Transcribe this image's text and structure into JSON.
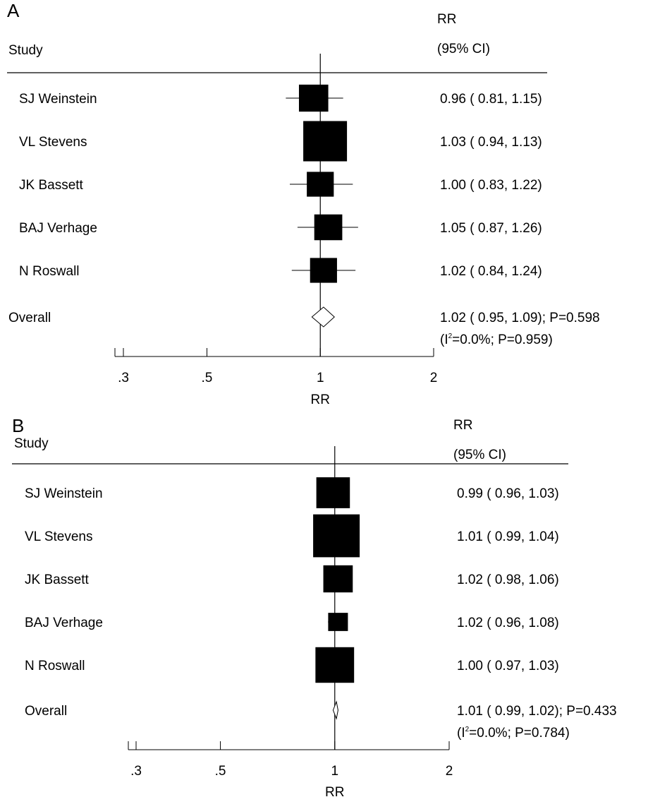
{
  "chart_data": [
    {
      "type": "forest",
      "panel_label": "A",
      "study_header": "Study",
      "rr_header": "RR",
      "ci_header": "(95% CI)",
      "xlabel": "RR",
      "xscale": "log",
      "xticks": [
        {
          "value": 0.3,
          "label": ".3"
        },
        {
          "value": 0.5,
          "label": ".5"
        },
        {
          "value": 1,
          "label": "1"
        },
        {
          "value": 2,
          "label": "2"
        }
      ],
      "reference_line": 1,
      "studies": [
        {
          "name": "SJ Weinstein",
          "rr": 0.96,
          "lo": 0.81,
          "hi": 1.15,
          "weight": 0.45,
          "label": "0.96 ( 0.81, 1.15)"
        },
        {
          "name": "VL Stevens",
          "rr": 1.03,
          "lo": 0.94,
          "hi": 1.13,
          "weight": 1.0,
          "label": "1.03 ( 0.94, 1.13)"
        },
        {
          "name": "JK Bassett",
          "rr": 1.0,
          "lo": 0.83,
          "hi": 1.22,
          "weight": 0.38,
          "label": "1.00 ( 0.83, 1.22)"
        },
        {
          "name": "BAJ Verhage",
          "rr": 1.05,
          "lo": 0.87,
          "hi": 1.26,
          "weight": 0.41,
          "label": "1.05 ( 0.87, 1.26)"
        },
        {
          "name": "N Roswall",
          "rr": 1.02,
          "lo": 0.84,
          "hi": 1.24,
          "weight": 0.38,
          "label": "1.02 ( 0.84, 1.24)"
        }
      ],
      "overall": {
        "name": "Overall",
        "rr": 1.02,
        "lo": 0.95,
        "hi": 1.09,
        "label": "1.02 ( 0.95, 1.09); P=0.598",
        "heterogeneity_prefix": "(I",
        "heterogeneity_sup": "2",
        "heterogeneity_suffix": "=0.0%; P=0.959)"
      }
    },
    {
      "type": "forest",
      "panel_label": "B",
      "study_header": "Study",
      "rr_header": "RR",
      "ci_header": "(95% CI)",
      "xlabel": "RR",
      "xscale": "log",
      "xticks": [
        {
          "value": 0.3,
          "label": ".3"
        },
        {
          "value": 0.5,
          "label": ".5"
        },
        {
          "value": 1,
          "label": "1"
        },
        {
          "value": 2,
          "label": "2"
        }
      ],
      "reference_line": 1,
      "studies": [
        {
          "name": "SJ Weinstein",
          "rr": 0.99,
          "lo": 0.96,
          "hi": 1.03,
          "weight": 0.52,
          "label": "0.99 ( 0.96, 1.03)"
        },
        {
          "name": "VL Stevens",
          "rr": 1.01,
          "lo": 0.99,
          "hi": 1.04,
          "weight": 1.0,
          "label": "1.01 ( 0.99, 1.04)"
        },
        {
          "name": "JK Bassett",
          "rr": 1.02,
          "lo": 0.98,
          "hi": 1.06,
          "weight": 0.4,
          "label": "1.02 ( 0.98, 1.06)"
        },
        {
          "name": "BAJ Verhage",
          "rr": 1.02,
          "lo": 0.96,
          "hi": 1.08,
          "weight": 0.18,
          "label": "1.02 ( 0.96, 1.08)"
        },
        {
          "name": "N Roswall",
          "rr": 1.0,
          "lo": 0.97,
          "hi": 1.03,
          "weight": 0.69,
          "label": "1.00 ( 0.97, 1.03)"
        }
      ],
      "overall": {
        "name": "Overall",
        "rr": 1.01,
        "lo": 0.99,
        "hi": 1.02,
        "label": "1.01 ( 0.99, 1.02); P=0.433",
        "heterogeneity_prefix": "(I",
        "heterogeneity_sup": "2",
        "heterogeneity_suffix": "=0.0%; P=0.784)"
      }
    }
  ]
}
